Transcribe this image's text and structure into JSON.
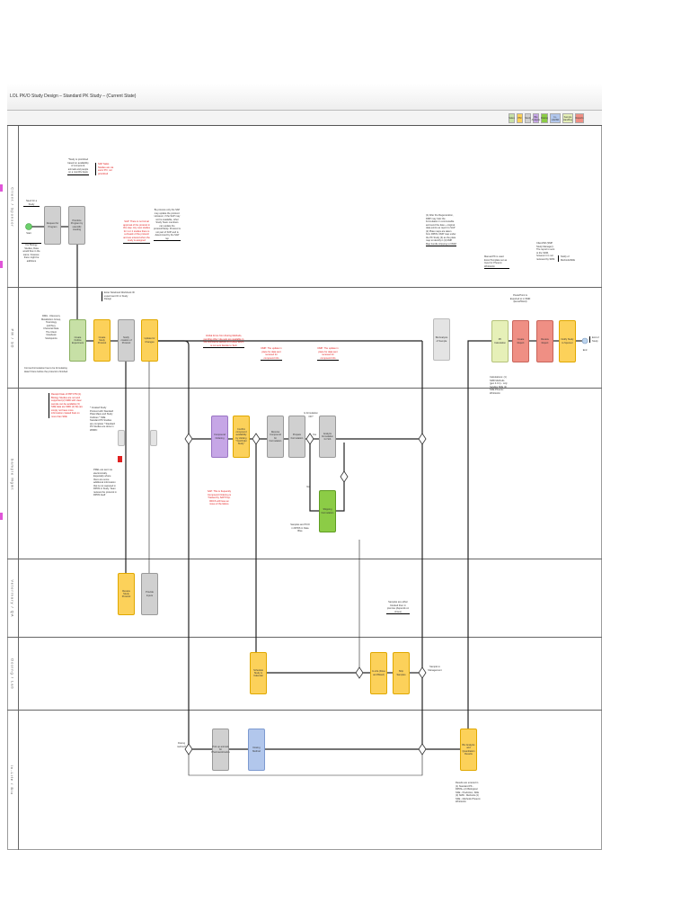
{
  "title": "LOL PK/O Study Design – Standard PK Study – (Current State)",
  "legend": [
    {
      "label": "Sales",
      "color": "#c7e0a6"
    },
    {
      "label": "PM",
      "color": "#fcd15a"
    },
    {
      "label": "Study",
      "color": "#d0d0d0"
    },
    {
      "label": "Bio Analysis",
      "color": "#c6a6e6"
    },
    {
      "label": "Dosing",
      "color": "#8ccc46"
    },
    {
      "label": "In-Life/SD",
      "color": "#b2c7ec"
    },
    {
      "label": "Sample Handling",
      "color": "#e6f0b8"
    },
    {
      "label": "Reports",
      "color": "#ef8f84"
    }
  ],
  "lanes": [
    "Client / Sponsor",
    "PM / SD",
    "Sample Mgmt",
    "Veterinary / QA",
    "Dosing / Lab",
    "In-Life / Bio"
  ],
  "nodes": {
    "start": "Start",
    "request_program": "Request for Program",
    "prioritize_program": "Prioritize Program by scientific meeting",
    "create_outline": "Create Outline Experiment",
    "create_protocol": "Create Study Protocol",
    "notify_protocol": "Notify creation of Protocol",
    "update_changes": "Update for Changes",
    "bioanalysis_sample": "BA Analysis of Sample",
    "pk_calc": "PK Calculation",
    "create_report": "Create Report",
    "review_report": "Review Report",
    "notify_client": "Notify Study to Sponsor",
    "end": "End",
    "end_label": "End of Study",
    "compound_ordering": "Compound Ordering",
    "confirm_compound": "Confirm compound availability by clicking \"Yes/Order Study\"",
    "receive_compound": "Receive Compound for Formulation",
    "prepare_formulation": "Prepare Formulation",
    "decision_stable": "Is formulation OK?",
    "yes": "Yes",
    "no": "No",
    "analyze_formulation": "Analyze formulation for Stb",
    "shipping_formulation": "Shipping Formulation",
    "review_protocol": "Review Study Protocol",
    "provide_inputs": "Provide Inputs",
    "schedule_study": "Schedule Study in Calendar",
    "in_life_dosing": "In-Life (Dose and Bleed)",
    "ship_samples": "Ship Samples",
    "sample_to_management": "Sample to Management",
    "dosing_method": "Dosing method?",
    "pick_animals": "Pick up animals for Pharmacokinetics",
    "dosing_method_box": "Dosing Method",
    "bio_analysis_sample": "Bio Analysis and Quantitation Results"
  },
  "annotations": {
    "need_study": "Need for a Study",
    "start_note": "For Biology Studies, Data would flow in the same; however, there might be additions",
    "study_prioritized": "*Study is prioritized based on availability of compound, animals and people on a monthly basis",
    "red_sap": "SAP Sales Studies are via ewm/ PO, not prioritized",
    "outline_note": "Enter Notebook Workbook ID experiment ID in Study Design",
    "dmg_note": "DMG - Discovery Metabolism Group, Toxicology (LD/Tox), Chemical Data. The Client Notebook Stockpoints",
    "protocol_note": "Format Formulation has to be formulating data if there before the protocol is finished",
    "red_changes": "SAP: There is no formal approval of the protocol in this step. Any new studies for 1 or 2 studies there is a cheack of the protocol and are entered when the study is assigned",
    "sd_note": "By process only the SAP may update the protocol. However, if the SAP may not be available, other Study Team members can update the protocol/Study. Protocol is not part of SOP and is determined by the SAP rep",
    "red_lab": "Verbal forms from During Methods, pending other rule-sets are available in the comments section of KOBFA which is not sent Decide to Tech",
    "red_tf1": "DMP: The update in place for data sent received for compound info",
    "red_tf2": "DMP: The update in place for data sent received for compound info",
    "right_note": "(1) After the Regeneration, DMP may Calc the Formulation in commutable and send the date + original data points as report to SAP (2) Plate maps are taken from RPDS, DMP map under the PK Study (3) as the plate map to identify it (4) DMP Map bundle shipping to DMM",
    "manual_pk": "Manual PK is used Excel Template set as Input for Phoenix WinNonlin",
    "ppt_note": "PowerPoint is Exported to in SMD (Excel/Word)",
    "client_note": "Client/SD (SMP Study Manager): The report is sent to the SDM, however it is not reviewed by SDM",
    "notify_note": "Notify of Methods/SDE",
    "calc_note": "Calculations: (1) SMD Methods (gen 4.0.1) - only handles SDE (2) SDE Phoenix WinNonlin",
    "red_sample": "Receipt Date of PRTCTM (1) Biology Studies are not well supported (2) SMD with clear sample can be available (3) SDE data are SMD (4) We are simply not have more information created Fast on more than SDE",
    "sample_note": "* Created Study Protocol with Standard Plate Maps and Study Outlines * SDE Standard PK Studies are complete * Standard PK Studies are done in WMRC",
    "pre_note": "PREL are sent via electronically. Especially where there are some additional information that is not captured in RPDS in Study. Team reviews the protocol in RPDS itself",
    "red_compound": "SAP: This is frequently Compound Ordering is Tracked by SAP Prep. RDCS will have an issue of the failure",
    "samples_note": "Samples are PK/O in RPDS in Data Blue",
    "dosing_note": "Samples are either blocked then in premise (depends on shoes)",
    "samples_mgmt": "Samples to be Management",
    "dosing_method_q": "Dosing method?",
    "results_note": "Results are entered in (1) Standard PK - RPDS+ (2) Biological SDE - Prediction, SDE (3) SMD - Methods (4) SDE - Methods Phoenix WinNonlin"
  }
}
